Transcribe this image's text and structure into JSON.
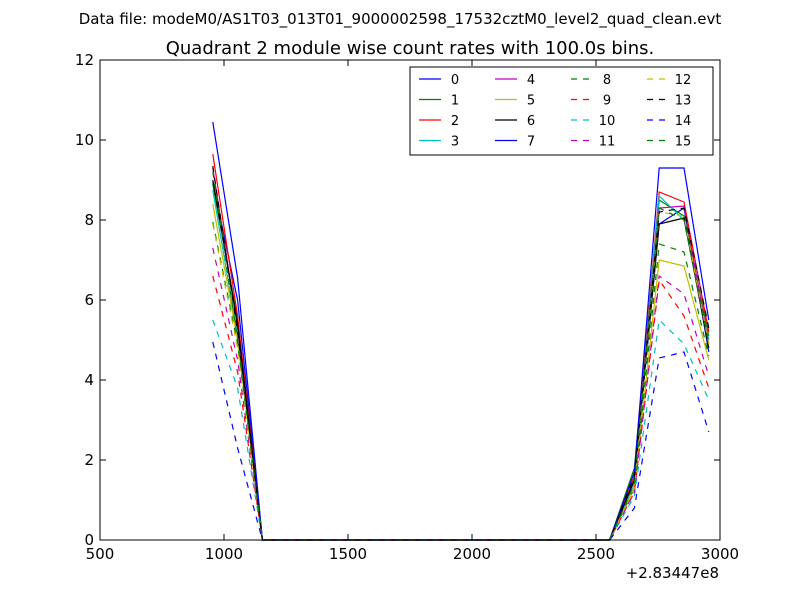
{
  "chart_data": {
    "type": "line",
    "suptitle": "Data file: modeM0/AS1T03_013T01_9000002598_17532cztM0_level2_quad_clean.evt",
    "title": "Quadrant 2 module wise count rates with 100.0s bins.",
    "xlabel": "",
    "ylabel": "",
    "xlim": [
      500,
      3000
    ],
    "ylim": [
      0,
      12
    ],
    "x_offset_label": "+2.83447e8",
    "x_ticks": [
      "500",
      "1000",
      "1500",
      "2000",
      "2500",
      "3000"
    ],
    "y_ticks": [
      "0",
      "2",
      "4",
      "6",
      "8",
      "10",
      "12"
    ],
    "grid": false,
    "legend": {
      "placement": "top-right",
      "columns": 4
    },
    "x": [
      955,
      1055,
      1155,
      1255,
      1355,
      1455,
      1555,
      1655,
      1755,
      1855,
      1955,
      2055,
      2155,
      2255,
      2355,
      2455,
      2555,
      2655,
      2755,
      2855,
      2955
    ],
    "series": [
      {
        "name": "0",
        "color": "#0000ff",
        "dash": "solid",
        "values": [
          8.95,
          6.0,
          0,
          0,
          0,
          0,
          0,
          0,
          0,
          0,
          0,
          0,
          0,
          0,
          0,
          0,
          0,
          1.5,
          7.9,
          8.3,
          4.7
        ]
      },
      {
        "name": "1",
        "color": "#008000",
        "dash": "solid",
        "values": [
          8.9,
          5.5,
          0,
          0,
          0,
          0,
          0,
          0,
          0,
          0,
          0,
          0,
          0,
          0,
          0,
          0,
          0,
          1.8,
          8.5,
          8.1,
          5.1
        ]
      },
      {
        "name": "2",
        "color": "#ff0000",
        "dash": "solid",
        "values": [
          9.65,
          5.6,
          0,
          0,
          0,
          0,
          0,
          0,
          0,
          0,
          0,
          0,
          0,
          0,
          0,
          0,
          0,
          1.6,
          8.7,
          8.45,
          5.2
        ]
      },
      {
        "name": "3",
        "color": "#00bfbf",
        "dash": "solid",
        "values": [
          8.75,
          5.1,
          0,
          0,
          0,
          0,
          0,
          0,
          0,
          0,
          0,
          0,
          0,
          0,
          0,
          0,
          0,
          1.4,
          8.6,
          8.0,
          5.0
        ]
      },
      {
        "name": "4",
        "color": "#bf00bf",
        "dash": "solid",
        "values": [
          9.3,
          5.3,
          0,
          0,
          0,
          0,
          0,
          0,
          0,
          0,
          0,
          0,
          0,
          0,
          0,
          0,
          0,
          1.5,
          8.3,
          8.35,
          4.9
        ]
      },
      {
        "name": "5",
        "color": "#bfbf00",
        "dash": "solid",
        "values": [
          8.4,
          5.0,
          0,
          0,
          0,
          0,
          0,
          0,
          0,
          0,
          0,
          0,
          0,
          0,
          0,
          0,
          0,
          1.3,
          7.0,
          6.85,
          4.5
        ]
      },
      {
        "name": "6",
        "color": "#000000",
        "dash": "solid",
        "values": [
          9.0,
          5.4,
          0,
          0,
          0,
          0,
          0,
          0,
          0,
          0,
          0,
          0,
          0,
          0,
          0,
          0,
          0,
          1.5,
          7.9,
          8.05,
          4.8
        ]
      },
      {
        "name": "7",
        "color": "#0000ff",
        "dash": "solid",
        "values": [
          10.45,
          6.55,
          0,
          0,
          0,
          0,
          0,
          0,
          0,
          0,
          0,
          0,
          0,
          0,
          0,
          0,
          0,
          1.7,
          9.3,
          9.3,
          5.5
        ]
      },
      {
        "name": "8",
        "color": "#008000",
        "dash": "dashed",
        "values": [
          7.95,
          4.9,
          0,
          0,
          0,
          0,
          0,
          0,
          0,
          0,
          0,
          0,
          0,
          0,
          0,
          0,
          0,
          1.3,
          7.4,
          7.2,
          4.6
        ]
      },
      {
        "name": "9",
        "color": "#ff0000",
        "dash": "dashed",
        "values": [
          6.6,
          4.2,
          0,
          0,
          0,
          0,
          0,
          0,
          0,
          0,
          0,
          0,
          0,
          0,
          0,
          0,
          0,
          1.2,
          6.5,
          5.6,
          3.8
        ]
      },
      {
        "name": "10",
        "color": "#00bfbf",
        "dash": "dashed",
        "values": [
          5.5,
          3.8,
          0,
          0,
          0,
          0,
          0,
          0,
          0,
          0,
          0,
          0,
          0,
          0,
          0,
          0,
          0,
          1.1,
          5.5,
          4.9,
          3.5
        ]
      },
      {
        "name": "11",
        "color": "#bf00bf",
        "dash": "dashed",
        "values": [
          7.3,
          4.5,
          0,
          0,
          0,
          0,
          0,
          0,
          0,
          0,
          0,
          0,
          0,
          0,
          0,
          0,
          0,
          1.2,
          6.6,
          6.15,
          4.1
        ]
      },
      {
        "name": "12",
        "color": "#bfbf00",
        "dash": "dashed",
        "values": [
          7.9,
          4.8,
          0,
          0,
          0,
          0,
          0,
          0,
          0,
          0,
          0,
          0,
          0,
          0,
          0,
          0,
          0,
          1.3,
          8.2,
          8.1,
          4.9
        ]
      },
      {
        "name": "13",
        "color": "#000000",
        "dash": "dashed",
        "values": [
          9.35,
          5.2,
          0,
          0,
          0,
          0,
          0,
          0,
          0,
          0,
          0,
          0,
          0,
          0,
          0,
          0,
          0,
          1.6,
          8.2,
          8.3,
          5.3
        ]
      },
      {
        "name": "14",
        "color": "#0000ff",
        "dash": "dashed",
        "values": [
          4.95,
          2.3,
          0,
          0,
          0,
          0,
          0,
          0,
          0,
          0,
          0,
          0,
          0,
          0,
          0,
          0,
          0,
          0.8,
          4.55,
          4.7,
          2.7
        ]
      },
      {
        "name": "15",
        "color": "#008000",
        "dash": "dashed",
        "values": [
          9.2,
          5.0,
          0,
          0,
          0,
          0,
          0,
          0,
          0,
          0,
          0,
          0,
          0,
          0,
          0,
          0,
          0,
          1.4,
          8.3,
          8.0,
          4.9
        ]
      }
    ]
  }
}
